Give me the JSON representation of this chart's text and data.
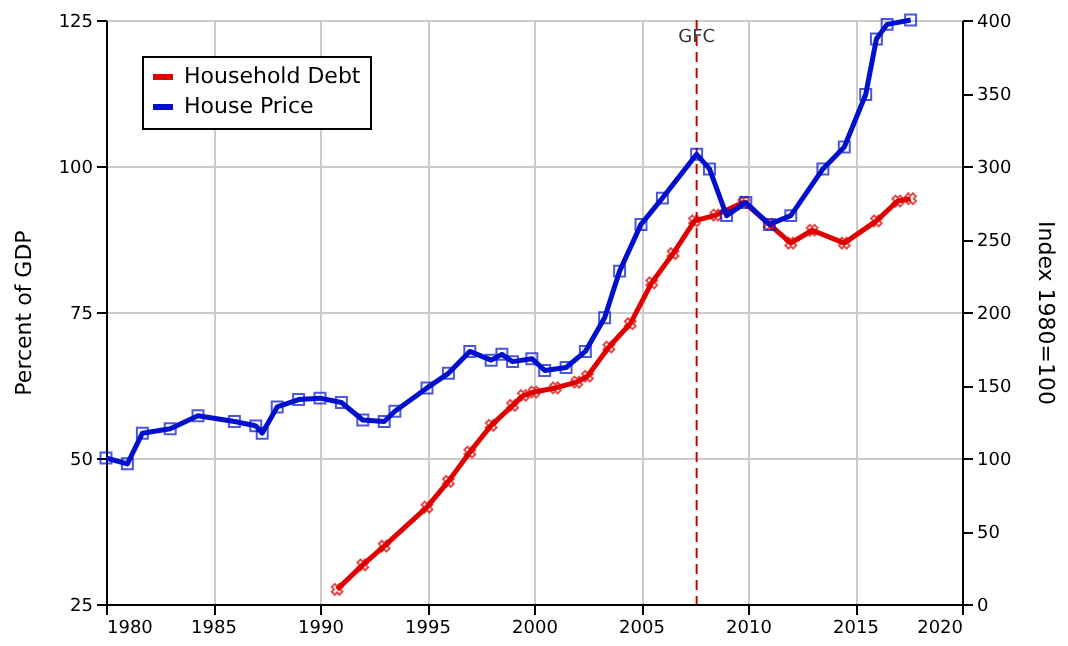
{
  "chart_data": {
    "type": "line",
    "ylabel": "Percent of GDP",
    "y2label": "Index 1980=100",
    "xlim": [
      1980,
      2020
    ],
    "xticks": [
      1980,
      1985,
      1990,
      1995,
      2000,
      2005,
      2010,
      2015,
      2020
    ],
    "ylim": [
      25,
      125
    ],
    "yticks": [
      25,
      50,
      75,
      100,
      125
    ],
    "y2lim": [
      0,
      400
    ],
    "y2ticks": [
      0,
      50,
      100,
      150,
      200,
      250,
      300,
      350,
      400
    ],
    "grid": true,
    "legend": "top left",
    "line_style": "solid",
    "ref_lines": [
      {
        "axis": "x",
        "value": 2007.6,
        "label": "GFC",
        "color": "#cc0000",
        "line_style": "dashed"
      }
    ],
    "series": [
      {
        "name": "Household Debt",
        "color": "#e00000",
        "marker": "cross",
        "x": [
          1990.8,
          1992,
          1993,
          1995,
          1996,
          1997,
          1998,
          1999,
          1999.5,
          2000,
          2001,
          2002,
          2002.5,
          2003.5,
          2004.5,
          2005.5,
          2006.5,
          2007.5,
          2008.5,
          2009.8,
          2011,
          2012,
          2013,
          2014.5,
          2016,
          2017,
          2017.6
        ],
        "values": [
          27.5,
          31.7,
          34.9,
          41.6,
          46,
          51,
          55.6,
          59,
          60.7,
          61.3,
          62,
          63,
          64,
          69,
          73,
          80,
          85,
          90.6,
          91.6,
          93.8,
          90,
          86.8,
          89,
          86.8,
          90.6,
          94,
          94.4
        ]
      },
      {
        "name": "House Price",
        "color": "#0010cc",
        "marker": "square",
        "axis": "y2",
        "x": [
          1980,
          1981,
          1981.7,
          1983,
          1984.3,
          1986,
          1987,
          1987.3,
          1988,
          1989,
          1990,
          1991,
          1992,
          1993,
          1993.5,
          1995,
          1996,
          1997,
          1998,
          1998.5,
          1999,
          1999.9,
          2000.5,
          2001.5,
          2002.4,
          2003.3,
          2004,
          2005,
          2006,
          2007.6,
          2008.2,
          2009,
          2009.9,
          2011,
          2012,
          2013.5,
          2014.5,
          2015.5,
          2016,
          2016.5,
          2017.6
        ],
        "values": [
          100,
          96,
          117,
          120,
          129,
          125,
          122,
          117,
          135,
          140,
          141,
          138,
          126,
          125,
          132,
          148,
          158,
          173,
          167,
          171,
          166,
          168,
          160,
          162,
          173,
          196,
          228,
          260,
          278,
          308,
          298,
          266,
          275,
          260,
          266,
          298,
          313,
          349,
          387,
          397,
          400
        ]
      }
    ]
  }
}
